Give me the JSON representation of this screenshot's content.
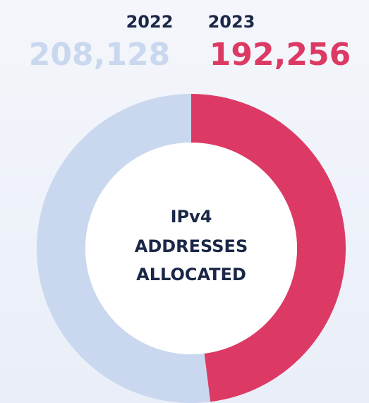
{
  "chart_data": {
    "type": "donut",
    "categories": [
      "2022",
      "2023"
    ],
    "values": [
      208128,
      192256
    ],
    "value_labels": [
      "208,128",
      "192,256"
    ],
    "colors": [
      "#c9d8ee",
      "#dc3a64"
    ],
    "center_label": [
      "IPv4",
      "ADDRESSES",
      "ALLOCATED"
    ]
  }
}
